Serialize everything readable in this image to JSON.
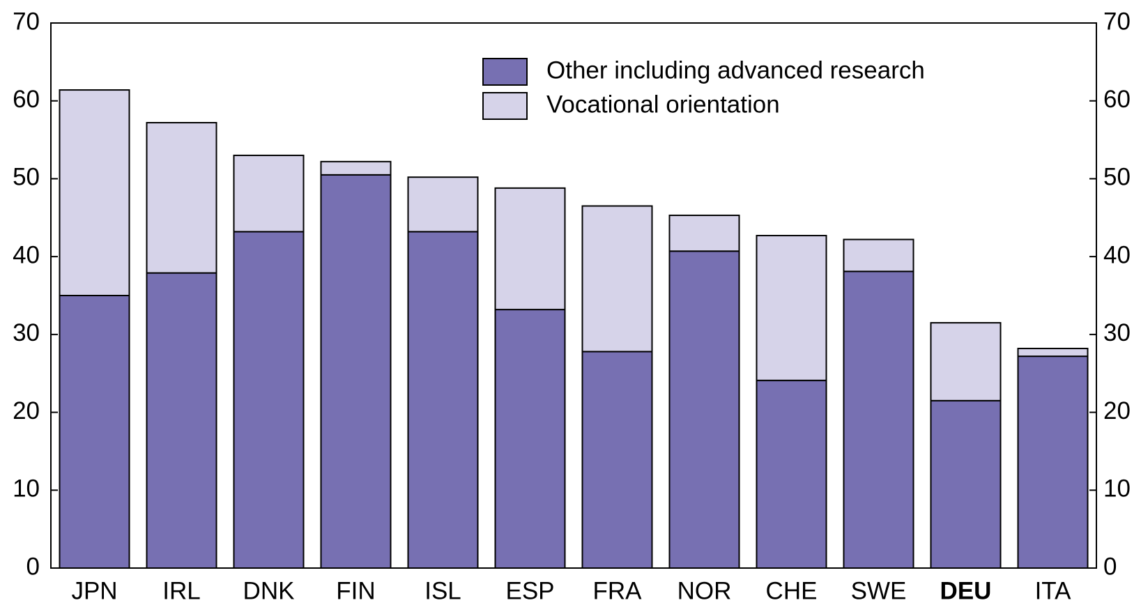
{
  "chart_data": {
    "type": "stacked_bar",
    "categories": [
      "JPN",
      "IRL",
      "DNK",
      "FIN",
      "ISL",
      "ESP",
      "FRA",
      "NOR",
      "CHE",
      "SWE",
      "DEU",
      "ITA"
    ],
    "highlight_index": 10,
    "series": [
      {
        "name": "Other including advanced research",
        "color": "#7770b2",
        "values": [
          35,
          37.9,
          43.2,
          50.5,
          43.2,
          33.2,
          27.8,
          40.7,
          24.1,
          38.1,
          21.5,
          27.2
        ]
      },
      {
        "name": "Vocational orientation",
        "color": "#d6d3e9",
        "values": [
          26.4,
          19.3,
          9.8,
          1.7,
          7.0,
          15.6,
          18.7,
          4.6,
          18.6,
          4.1,
          10.0,
          1.0
        ]
      }
    ],
    "ylim": [
      0,
      70
    ],
    "yticks": [
      0,
      10,
      20,
      30,
      40,
      50,
      60,
      70
    ],
    "y2lim": [
      0,
      70
    ],
    "y2ticks": [
      0,
      10,
      20,
      30,
      40,
      50,
      60,
      70
    ],
    "legend": "top-center"
  }
}
